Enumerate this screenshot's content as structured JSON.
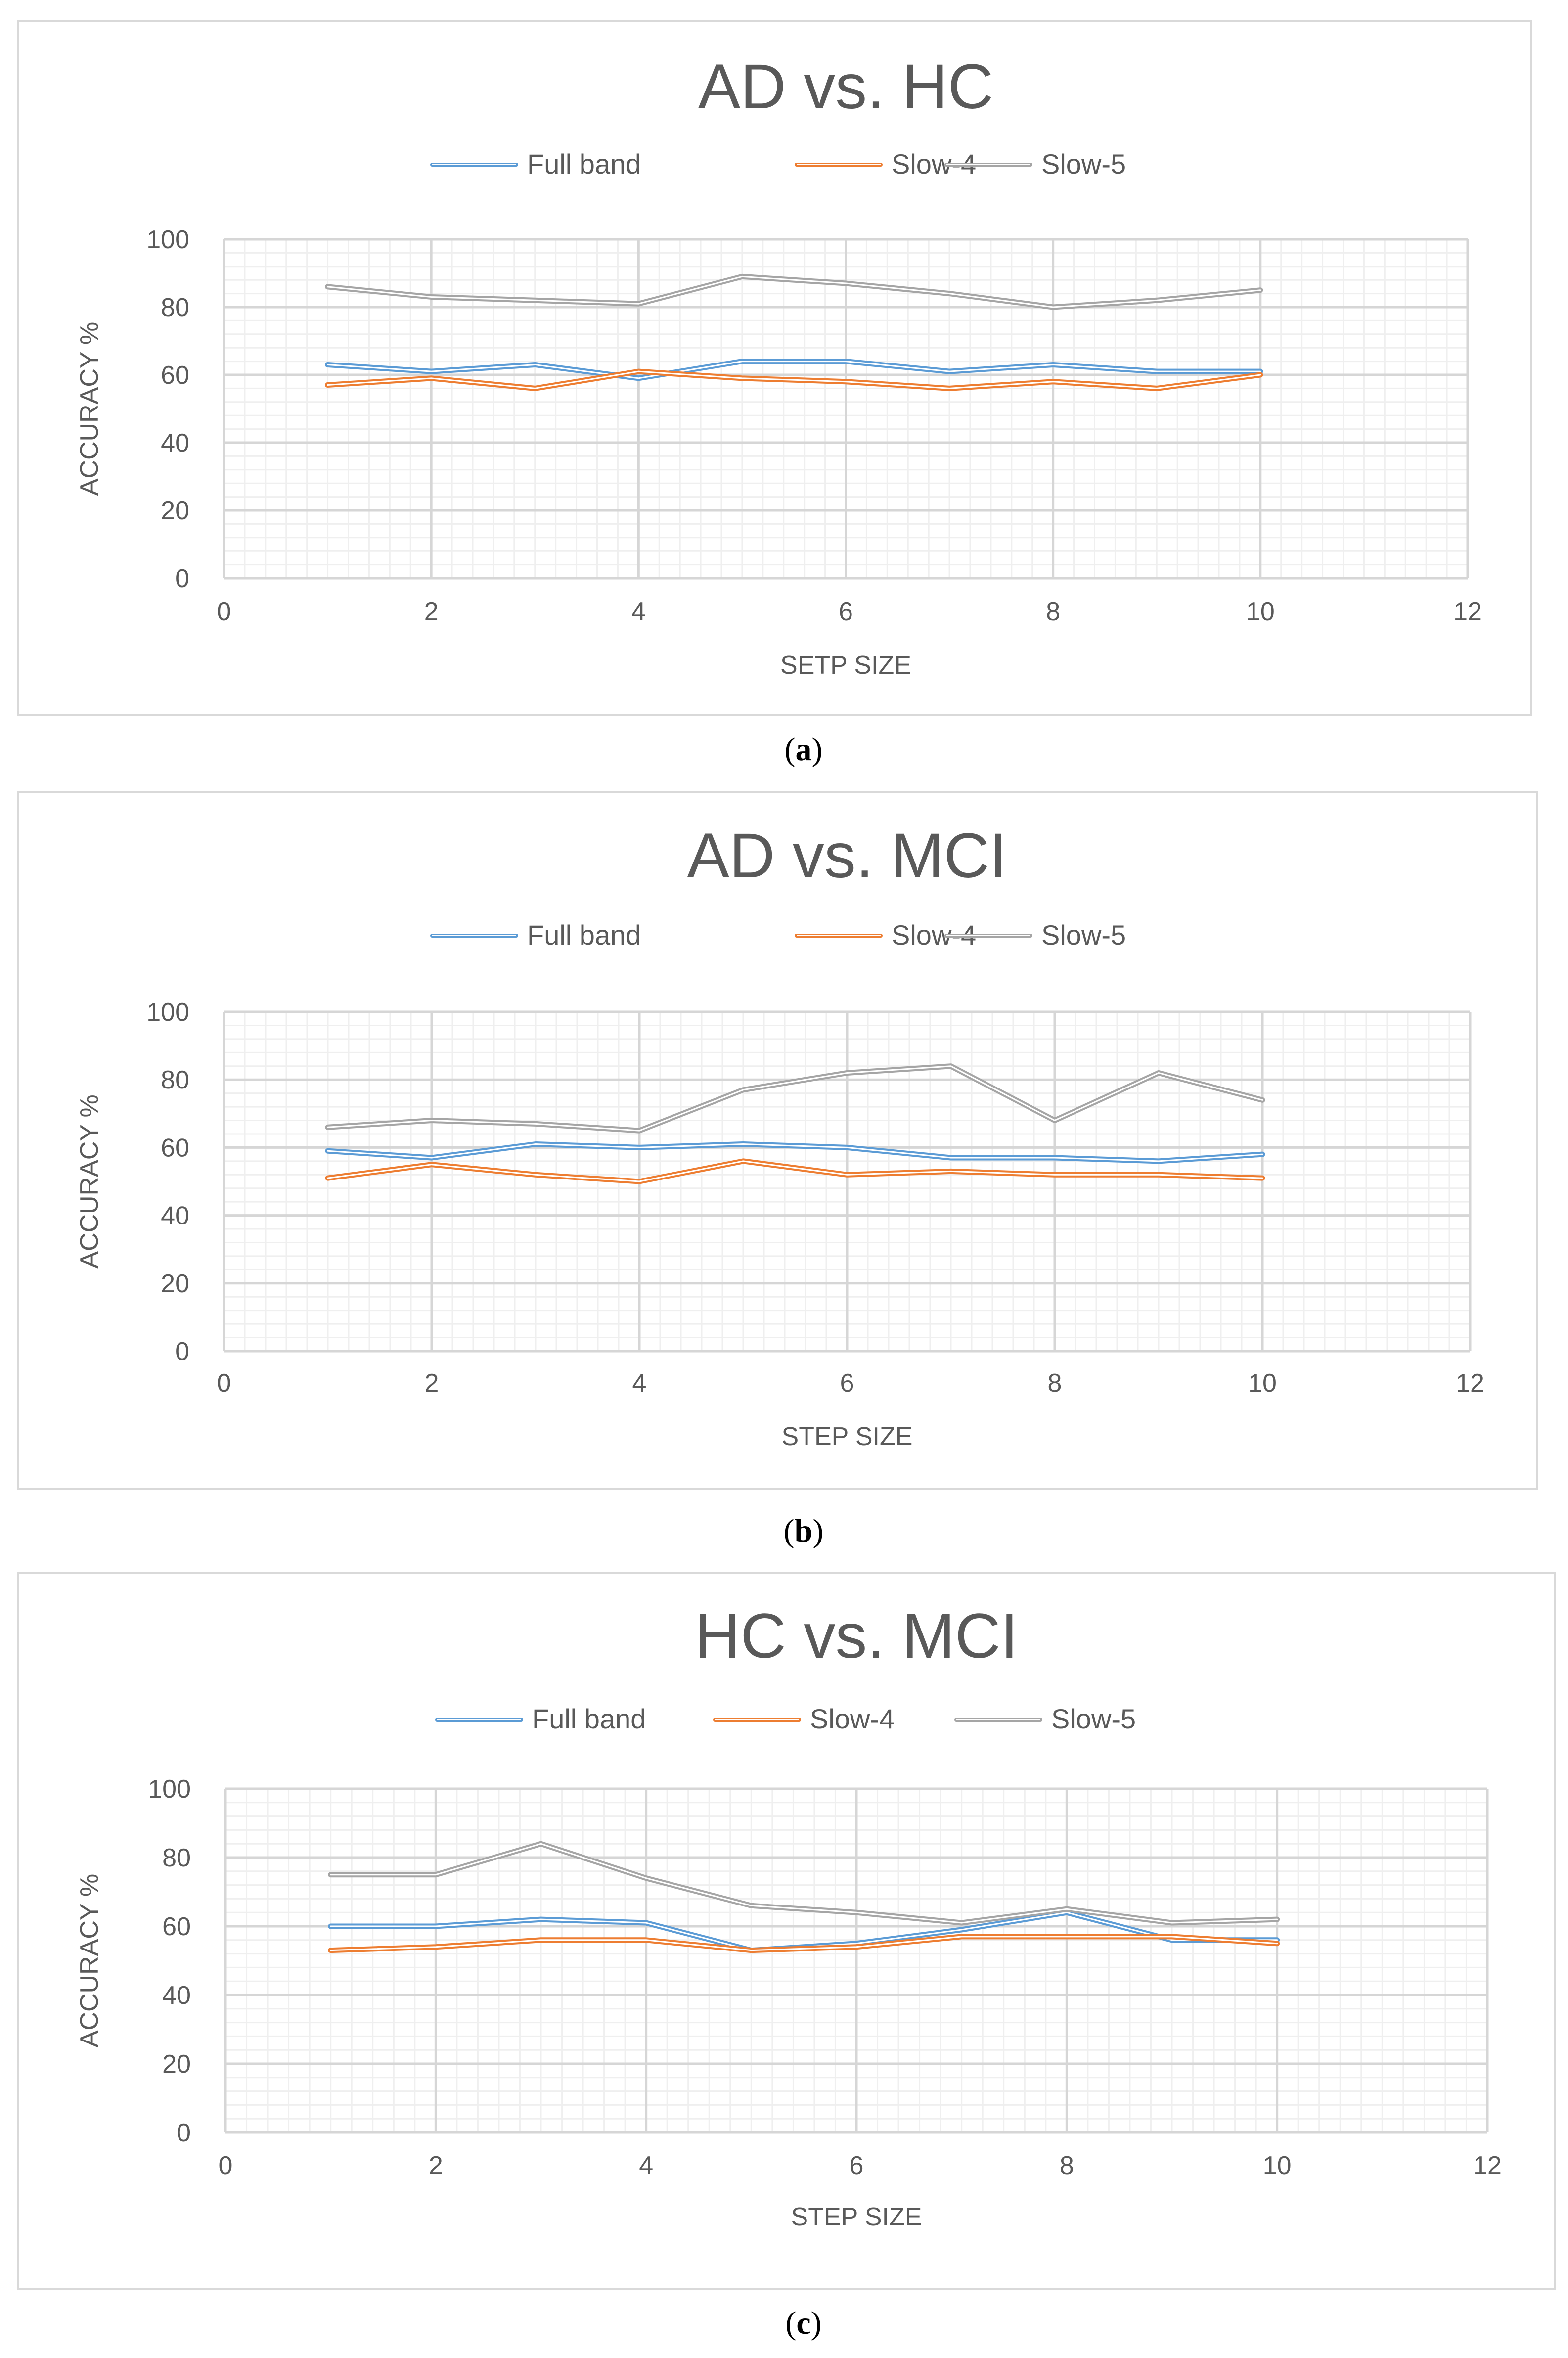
{
  "legend_colors": {
    "Full band": "#5b9bd5",
    "Slow-4": "#ed7d31",
    "Slow-5": "#a5a5a5"
  },
  "chart_data": [
    {
      "type": "line",
      "title": "AD vs. HC",
      "xlabel": "SETP SIZE",
      "ylabel": "ACCURACY %",
      "xlim": [
        0,
        12
      ],
      "ylim": [
        0,
        100
      ],
      "xticks": [
        0,
        2,
        4,
        6,
        8,
        10,
        12
      ],
      "yticks": [
        0,
        20,
        40,
        60,
        80,
        100
      ],
      "legend_position": "top-center",
      "x": [
        1,
        2,
        3,
        4,
        5,
        6,
        7,
        8,
        9,
        10
      ],
      "series": [
        {
          "name": "Full band",
          "values": [
            63,
            61,
            63,
            59,
            64,
            64,
            61,
            63,
            61,
            61
          ]
        },
        {
          "name": "Slow-4",
          "values": [
            57,
            59,
            56,
            61,
            59,
            58,
            56,
            58,
            56,
            60
          ]
        },
        {
          "name": "Slow-5",
          "values": [
            86,
            83,
            82,
            81,
            89,
            87,
            84,
            80,
            82,
            85
          ]
        }
      ],
      "caption": "a"
    },
    {
      "type": "line",
      "title": "AD vs. MCI",
      "xlabel": "STEP SIZE",
      "ylabel": "ACCURACY %",
      "xlim": [
        0,
        12
      ],
      "ylim": [
        0,
        100
      ],
      "xticks": [
        0,
        2,
        4,
        6,
        8,
        10,
        12
      ],
      "yticks": [
        0,
        20,
        40,
        60,
        80,
        100
      ],
      "legend_position": "top-center",
      "x": [
        1,
        2,
        3,
        4,
        5,
        6,
        7,
        8,
        9,
        10
      ],
      "series": [
        {
          "name": "Full band",
          "values": [
            59,
            57,
            61,
            60,
            61,
            60,
            57,
            57,
            56,
            58
          ]
        },
        {
          "name": "Slow-4",
          "values": [
            51,
            55,
            52,
            50,
            56,
            52,
            53,
            52,
            52,
            51
          ]
        },
        {
          "name": "Slow-5",
          "values": [
            66,
            68,
            67,
            65,
            77,
            82,
            84,
            68,
            82,
            74
          ]
        }
      ],
      "caption": "b"
    },
    {
      "type": "line",
      "title": "HC vs. MCI",
      "xlabel": "STEP SIZE",
      "ylabel": "ACCURACY %",
      "xlim": [
        0,
        12
      ],
      "ylim": [
        0,
        100
      ],
      "xticks": [
        0,
        2,
        4,
        6,
        8,
        10,
        12
      ],
      "yticks": [
        0,
        20,
        40,
        60,
        80,
        100
      ],
      "legend_position": "top-center",
      "x": [
        1,
        2,
        3,
        4,
        5,
        6,
        7,
        8,
        9,
        10
      ],
      "series": [
        {
          "name": "Full band",
          "values": [
            60,
            60,
            62,
            61,
            53,
            55,
            59,
            64,
            56,
            56
          ]
        },
        {
          "name": "Slow-4",
          "values": [
            53,
            54,
            56,
            56,
            53,
            54,
            57,
            57,
            57,
            55
          ]
        },
        {
          "name": "Slow-5",
          "values": [
            75,
            75,
            84,
            74,
            66,
            64,
            61,
            65,
            61,
            62
          ]
        }
      ],
      "caption": "c"
    }
  ]
}
